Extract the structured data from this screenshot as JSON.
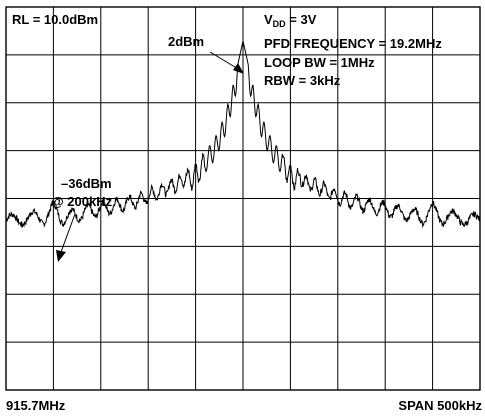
{
  "chart_data": {
    "type": "line",
    "title": "",
    "xlabel": "",
    "ylabel": "",
    "grid": true,
    "grid_divisions": {
      "x": 10,
      "y": 8
    },
    "ylim": [
      -80,
      10
    ],
    "xlim": [
      -250,
      250
    ],
    "x_unit": "kHz offset from 915.95MHz",
    "y_unit": "dBm",
    "corner_labels": {
      "start": "915.7MHz",
      "span": "SPAN 500kHz"
    },
    "reference_level": "RL = 10.0dBm",
    "settings": {
      "vdd_prefix": "V",
      "vdd_sub": "DD",
      "vdd_value": " = 3V",
      "pfd": "PFD FREQUENCY = 19.2MHz",
      "loop_bw": "LOOP BW = 1MHz",
      "rbw": "RBW = 3kHz"
    },
    "annotations": [
      {
        "id": "peak",
        "text": "2dBm",
        "x": 0,
        "y": 2
      },
      {
        "id": "spur",
        "text_line1": "–36dBm",
        "text_line2": "@ 200kHz",
        "x": -200,
        "y": -36
      }
    ],
    "series": [
      {
        "peak": {
          "x": 0,
          "y": 2
        },
        "x": [
          -250,
          -230,
          -210,
          -200,
          -190,
          -170,
          -150,
          -130,
          -110,
          -90,
          -70,
          -50,
          -40,
          -30,
          -20,
          -15,
          -10,
          -5,
          0,
          5,
          10,
          15,
          20,
          30,
          40,
          50,
          70,
          90,
          110,
          130,
          150,
          170,
          190,
          200,
          210,
          230,
          250
        ],
        "y": [
          -39,
          -38,
          -38,
          -36,
          -38,
          -37,
          -36,
          -35,
          -34,
          -32,
          -30,
          -27,
          -24,
          -21,
          -16,
          -12,
          -8,
          -3,
          2,
          -3,
          -8,
          -12,
          -16,
          -21,
          -24,
          -27,
          -30,
          -32,
          -34,
          -35,
          -36,
          -37,
          -38,
          -36,
          -38,
          -38,
          -39
        ]
      }
    ]
  }
}
